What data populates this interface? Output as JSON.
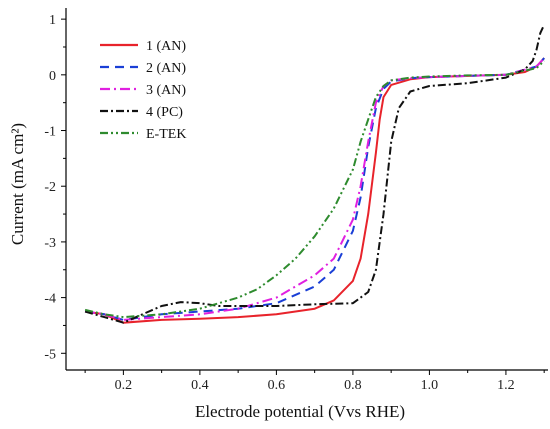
{
  "chart_data": {
    "type": "line",
    "title": "",
    "xlabel": "Electrode potential (Vvs RHE)",
    "ylabel": "Current (mA cm²)",
    "xlim": [
      0.05,
      1.31
    ],
    "ylim": [
      -5.3,
      1.2
    ],
    "xticks": [
      "0.2",
      "0.4",
      "0.6",
      "0.8",
      "1.0",
      "1.2"
    ],
    "xtick_values": [
      0.2,
      0.4,
      0.6,
      0.8,
      1.0,
      1.2
    ],
    "yticks": [
      "1",
      "0",
      "-1",
      "-2",
      "-3",
      "-4",
      "-5"
    ],
    "ytick_values": [
      1,
      0,
      -1,
      -2,
      -3,
      -4,
      -5
    ],
    "grid": false,
    "legend_position": "top-left",
    "series": [
      {
        "name": "1 (AN)",
        "color": "#e8232b",
        "dash": "solid",
        "x": [
          0.1,
          0.15,
          0.2,
          0.3,
          0.4,
          0.5,
          0.6,
          0.7,
          0.75,
          0.8,
          0.82,
          0.84,
          0.86,
          0.87,
          0.88,
          0.9,
          0.95,
          1.0,
          1.1,
          1.2,
          1.25,
          1.28,
          1.3
        ],
        "y": [
          -4.25,
          -4.3,
          -4.45,
          -4.4,
          -4.38,
          -4.35,
          -4.3,
          -4.2,
          -4.05,
          -3.7,
          -3.3,
          -2.5,
          -1.4,
          -0.8,
          -0.4,
          -0.18,
          -0.08,
          -0.04,
          -0.02,
          0.0,
          0.05,
          0.15,
          0.3
        ]
      },
      {
        "name": "2 (AN)",
        "color": "#1a3fd6",
        "dash": "9,6",
        "x": [
          0.1,
          0.15,
          0.2,
          0.25,
          0.3,
          0.4,
          0.5,
          0.6,
          0.7,
          0.75,
          0.8,
          0.82,
          0.84,
          0.86,
          0.88,
          0.9,
          0.95,
          1.0,
          1.1,
          1.2,
          1.28,
          1.3
        ],
        "y": [
          -4.25,
          -4.3,
          -4.4,
          -4.35,
          -4.3,
          -4.25,
          -4.2,
          -4.1,
          -3.8,
          -3.5,
          -2.8,
          -2.2,
          -1.3,
          -0.6,
          -0.25,
          -0.12,
          -0.06,
          -0.04,
          -0.02,
          0.0,
          0.15,
          0.3
        ]
      },
      {
        "name": "3 (AN)",
        "color": "#e020e0",
        "dash": "10,4,2,4",
        "x": [
          0.1,
          0.15,
          0.2,
          0.3,
          0.4,
          0.5,
          0.6,
          0.7,
          0.75,
          0.8,
          0.82,
          0.84,
          0.86,
          0.88,
          0.9,
          0.95,
          1.0,
          1.1,
          1.2,
          1.28,
          1.3
        ],
        "y": [
          -4.25,
          -4.3,
          -4.4,
          -4.35,
          -4.3,
          -4.2,
          -4.0,
          -3.6,
          -3.3,
          -2.6,
          -2.0,
          -1.2,
          -0.5,
          -0.2,
          -0.1,
          -0.06,
          -0.04,
          -0.02,
          0.0,
          0.15,
          0.3
        ]
      },
      {
        "name": "4 (PC)",
        "color": "#111111",
        "dash": "8,3,2,3",
        "x": [
          0.1,
          0.15,
          0.2,
          0.25,
          0.3,
          0.35,
          0.4,
          0.45,
          0.5,
          0.6,
          0.7,
          0.8,
          0.84,
          0.86,
          0.88,
          0.9,
          0.92,
          0.95,
          1.0,
          1.1,
          1.2,
          1.25,
          1.27,
          1.28,
          1.29,
          1.3
        ],
        "y": [
          -4.25,
          -4.35,
          -4.45,
          -4.3,
          -4.15,
          -4.08,
          -4.1,
          -4.15,
          -4.15,
          -4.15,
          -4.12,
          -4.1,
          -3.9,
          -3.5,
          -2.5,
          -1.2,
          -0.6,
          -0.3,
          -0.2,
          -0.15,
          -0.05,
          0.1,
          0.25,
          0.45,
          0.75,
          0.9
        ]
      },
      {
        "name": "E-TEK",
        "color": "#2e8b2e",
        "dash": "8,3,2,3,2,3",
        "x": [
          0.1,
          0.15,
          0.2,
          0.3,
          0.4,
          0.5,
          0.55,
          0.6,
          0.65,
          0.7,
          0.75,
          0.8,
          0.82,
          0.84,
          0.86,
          0.88,
          0.9,
          0.95,
          1.0,
          1.1,
          1.2,
          1.28,
          1.3
        ],
        "y": [
          -4.22,
          -4.3,
          -4.35,
          -4.3,
          -4.2,
          -4.0,
          -3.85,
          -3.6,
          -3.3,
          -2.9,
          -2.4,
          -1.7,
          -1.2,
          -0.8,
          -0.4,
          -0.2,
          -0.1,
          -0.05,
          -0.03,
          -0.01,
          0.0,
          0.12,
          0.25
        ]
      }
    ]
  }
}
